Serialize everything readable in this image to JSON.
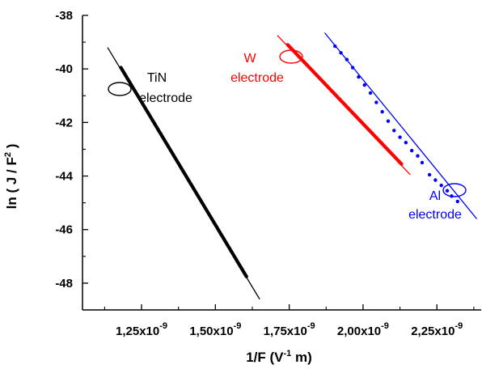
{
  "chart_data": {
    "type": "scatter",
    "xlabel": {
      "main": "1/F (V",
      "sup": "-1",
      "tail": " m)"
    },
    "ylabel": {
      "main": "ln ( J / F",
      "sup": "2",
      "tail": " )"
    },
    "xlim": [
      1.05,
      2.4
    ],
    "ylim": [
      -49.0,
      -38.0
    ],
    "x_ticks": [
      {
        "value": 1.25,
        "label": "1,25x10",
        "exp": "-9"
      },
      {
        "value": 1.5,
        "label": "1,50x10",
        "exp": "-9"
      },
      {
        "value": 1.75,
        "label": "1,75x10",
        "exp": "-9"
      },
      {
        "value": 2.0,
        "label": "2,00x10",
        "exp": "-9"
      },
      {
        "value": 2.25,
        "label": "2,25x10",
        "exp": "-9"
      }
    ],
    "y_ticks": [
      {
        "value": -38,
        "label": "-38"
      },
      {
        "value": -40,
        "label": "-40"
      },
      {
        "value": -42,
        "label": "-42"
      },
      {
        "value": -44,
        "label": "-44"
      },
      {
        "value": -46,
        "label": "-46"
      },
      {
        "value": -48,
        "label": "-48"
      }
    ],
    "grid": false,
    "series": [
      {
        "name": "TiN electrode",
        "color": "#000000",
        "fit_line": [
          [
            1.135,
            -39.2
          ],
          [
            1.65,
            -48.6
          ]
        ],
        "points_from": [
          1.18,
          -39.95
        ],
        "points_to": [
          1.605,
          -47.75
        ],
        "n_points": 140
      },
      {
        "name": "W electrode",
        "color": "#ff0000",
        "fit_line": [
          [
            1.71,
            -38.75
          ],
          [
            2.16,
            -43.95
          ]
        ],
        "points_from": [
          1.745,
          -39.1
        ],
        "points_to": [
          2.13,
          -43.55
        ],
        "n_points": 110
      },
      {
        "name": "Al electrode",
        "color": "#0000ff",
        "fit_line": [
          [
            1.87,
            -38.65
          ],
          [
            2.385,
            -45.6
          ]
        ],
        "points": [
          [
            1.905,
            -39.15
          ],
          [
            1.925,
            -39.4
          ],
          [
            1.945,
            -39.65
          ],
          [
            1.965,
            -39.95
          ],
          [
            1.985,
            -40.3
          ],
          [
            2.005,
            -40.6
          ],
          [
            2.025,
            -40.9
          ],
          [
            2.045,
            -41.25
          ],
          [
            2.065,
            -41.6
          ],
          [
            2.085,
            -41.95
          ],
          [
            2.105,
            -42.3
          ],
          [
            2.125,
            -42.55
          ],
          [
            2.145,
            -42.75
          ],
          [
            2.165,
            -43.05
          ],
          [
            2.185,
            -43.25
          ],
          [
            2.2,
            -43.5
          ],
          [
            2.225,
            -43.95
          ],
          [
            2.245,
            -44.15
          ],
          [
            2.265,
            -44.35
          ],
          [
            2.285,
            -44.55
          ],
          [
            2.3,
            -44.75
          ],
          [
            2.32,
            -44.95
          ]
        ]
      }
    ],
    "annotations": [
      {
        "lines": [
          "TiN",
          "electrode"
        ],
        "color": "#000000"
      },
      {
        "lines": [
          "W",
          "electrode"
        ],
        "color": "#ff0000"
      },
      {
        "lines": [
          "Al",
          "electrode"
        ],
        "color": "#0000ff"
      }
    ]
  }
}
